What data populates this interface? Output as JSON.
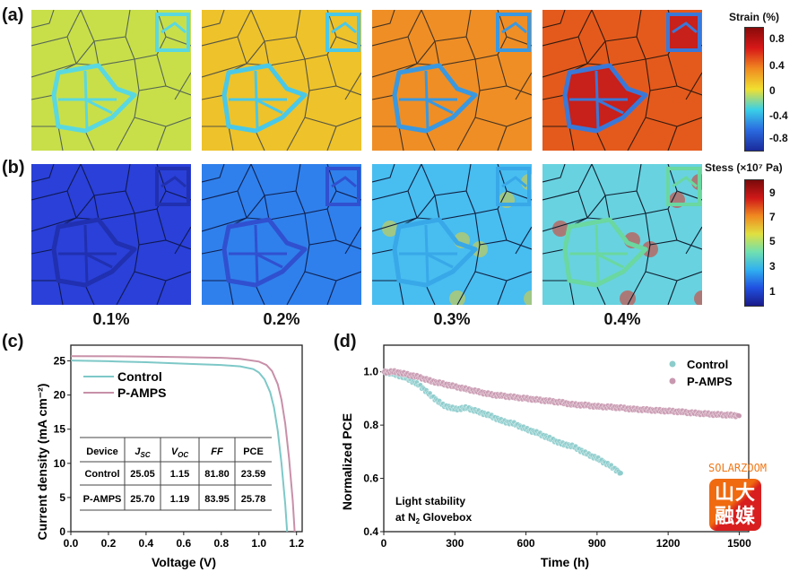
{
  "panels": {
    "a": "(a)",
    "b": "(b)",
    "c": "(c)",
    "d": "(d)"
  },
  "strain_levels": [
    "0.1%",
    "0.2%",
    "0.3%",
    "0.4%"
  ],
  "strain_colorbar": {
    "title": "Strain (%)",
    "ticks": [
      "0.8",
      "0.4",
      "0",
      "-0.4",
      "-0.8"
    ],
    "colors": [
      "#1a2a9a",
      "#2a6ae0",
      "#3ad0e8",
      "#f0e030",
      "#f08a20",
      "#d81818",
      "#8a0a0a"
    ]
  },
  "stress_colorbar": {
    "title": "Stess (×10⁷ Pa)",
    "ticks": [
      "9",
      "7",
      "5",
      "3",
      "1"
    ],
    "colors": [
      "#1a1a8a",
      "#2050e0",
      "#30b0f0",
      "#70e0b0",
      "#e0e040",
      "#f08a20",
      "#d01818",
      "#7a0a0a"
    ]
  },
  "strain_maps": [
    {
      "bg": "#c8df4a",
      "hl": "#5ad8e0",
      "line": "#556655"
    },
    {
      "bg": "#eec22a",
      "hl": "#4ac8e8",
      "line": "#555544"
    },
    {
      "bg": "#ef8e25",
      "hl": "#3a98e0",
      "line": "#443322"
    },
    {
      "bg": "#e45a1c",
      "hl": "#3a78d8",
      "line": "#331a10",
      "inner": "#c8201a"
    }
  ],
  "stress_maps": [
    {
      "bg": "#2a40d8",
      "hl": "#2030b0",
      "line": "#101850"
    },
    {
      "bg": "#2f80ec",
      "hl": "#3050d0",
      "line": "#102050"
    },
    {
      "bg": "#48bdf0",
      "hl": "#38a8e8",
      "line": "#102040",
      "hot": "#e8d030"
    },
    {
      "bg": "#68d2e0",
      "hl": "#6ad8a0",
      "line": "#102030",
      "hot": "#e03020"
    }
  ],
  "chart_data": [
    {
      "type": "line",
      "xlabel": "Voltage (V)",
      "ylabel": "Current density (mA cm⁻²)",
      "xlim": [
        0,
        1.23
      ],
      "ylim": [
        0,
        27.3
      ],
      "xticks": [
        "0.0",
        "0.2",
        "0.4",
        "0.6",
        "0.8",
        "1.0",
        "1.2"
      ],
      "yticks": [
        "0",
        "5",
        "10",
        "15",
        "20",
        "25"
      ],
      "legend": "top-left",
      "series": [
        {
          "name": "Control",
          "color": "#7ec8c8",
          "x": [
            0,
            0.2,
            0.4,
            0.6,
            0.8,
            0.9,
            0.97,
            1.0,
            1.03,
            1.06,
            1.08,
            1.1,
            1.12,
            1.14,
            1.15
          ],
          "y": [
            25.05,
            24.95,
            24.8,
            24.6,
            24.4,
            24.2,
            23.8,
            23.3,
            22.3,
            20.4,
            18.2,
            14.8,
            10.0,
            4.0,
            0
          ]
        },
        {
          "name": "P-AMPS",
          "color": "#c890a8",
          "x": [
            0,
            0.2,
            0.4,
            0.6,
            0.8,
            0.9,
            1.0,
            1.04,
            1.07,
            1.1,
            1.12,
            1.14,
            1.16,
            1.18,
            1.19
          ],
          "y": [
            25.7,
            25.68,
            25.62,
            25.55,
            25.45,
            25.3,
            24.9,
            24.4,
            23.5,
            21.6,
            19.3,
            15.8,
            10.8,
            4.5,
            0
          ]
        }
      ],
      "table": {
        "headers": [
          "Device",
          "J_SC",
          "V_OC",
          "FF",
          "PCE"
        ],
        "rows": [
          [
            "Control",
            "25.05",
            "1.15",
            "81.80",
            "23.59"
          ],
          [
            "P-AMPS",
            "25.70",
            "1.19",
            "83.95",
            "25.78"
          ]
        ]
      }
    },
    {
      "type": "scatter",
      "xlabel": "Time (h)",
      "ylabel": "Normalized PCE",
      "xlim": [
        0,
        1540
      ],
      "ylim": [
        0.4,
        1.1
      ],
      "xticks": [
        "0",
        "300",
        "600",
        "900",
        "1200",
        "1500"
      ],
      "yticks": [
        "0.4",
        "0.6",
        "0.8",
        "1.0"
      ],
      "legend": "top-right",
      "annotation": [
        "Light stability",
        "at N",
        "2",
        " Glovebox"
      ],
      "series": [
        {
          "name": "Control",
          "color": "#8ccccc",
          "x": [
            0,
            50,
            100,
            150,
            200,
            250,
            300,
            350,
            400,
            450,
            500,
            550,
            600,
            650,
            700,
            750,
            800,
            850,
            900,
            950,
            1000
          ],
          "y": [
            1.0,
            0.99,
            0.975,
            0.95,
            0.91,
            0.875,
            0.86,
            0.865,
            0.85,
            0.835,
            0.815,
            0.805,
            0.785,
            0.77,
            0.75,
            0.73,
            0.72,
            0.695,
            0.675,
            0.65,
            0.62
          ]
        },
        {
          "name": "P-AMPS",
          "color": "#c898b0",
          "x": [
            0,
            50,
            100,
            150,
            200,
            250,
            300,
            350,
            400,
            450,
            500,
            550,
            600,
            650,
            700,
            750,
            800,
            850,
            900,
            950,
            1000,
            1050,
            1100,
            1150,
            1200,
            1250,
            1300,
            1350,
            1400,
            1450,
            1500
          ],
          "y": [
            1.0,
            1.0,
            0.99,
            0.98,
            0.965,
            0.955,
            0.945,
            0.935,
            0.925,
            0.915,
            0.91,
            0.905,
            0.9,
            0.895,
            0.89,
            0.885,
            0.877,
            0.875,
            0.87,
            0.868,
            0.865,
            0.86,
            0.858,
            0.855,
            0.853,
            0.85,
            0.846,
            0.843,
            0.84,
            0.838,
            0.835
          ]
        }
      ]
    }
  ],
  "watermark": {
    "logo": "山大融媒",
    "text": "SOLARZOOM"
  }
}
